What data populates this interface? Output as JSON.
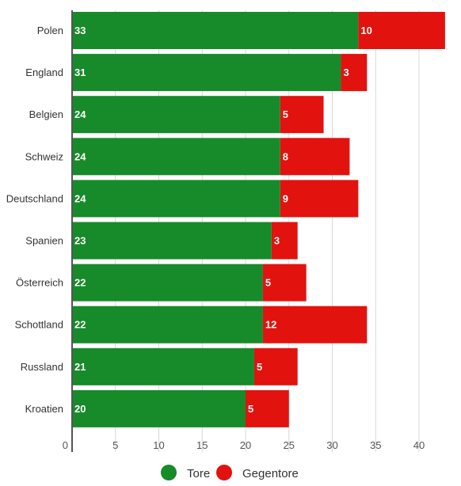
{
  "colors": {
    "tore": "#178a2a",
    "gegentore": "#e2120f",
    "grid": "#d8d8d8",
    "axis": "#555555"
  },
  "chart_data": {
    "type": "bar",
    "orientation": "horizontal",
    "stacked": true,
    "categories": [
      "Polen",
      "England",
      "Belgien",
      "Schweiz",
      "Deutschland",
      "Spanien",
      "Österreich",
      "Schottland",
      "Russland",
      "Kroatien"
    ],
    "series": [
      {
        "name": "Tore",
        "values": [
          33,
          31,
          24,
          24,
          24,
          23,
          22,
          22,
          21,
          20
        ]
      },
      {
        "name": "Gegentore",
        "values": [
          10,
          3,
          5,
          8,
          9,
          3,
          5,
          12,
          5,
          5
        ]
      }
    ],
    "xticks": [
      "0",
      "5",
      "10",
      "15",
      "20",
      "25",
      "30",
      "35",
      "40"
    ],
    "xlim": [
      0,
      43
    ],
    "grid": true,
    "legend": "bottom-center",
    "title": "",
    "xlabel": "",
    "ylabel": ""
  }
}
